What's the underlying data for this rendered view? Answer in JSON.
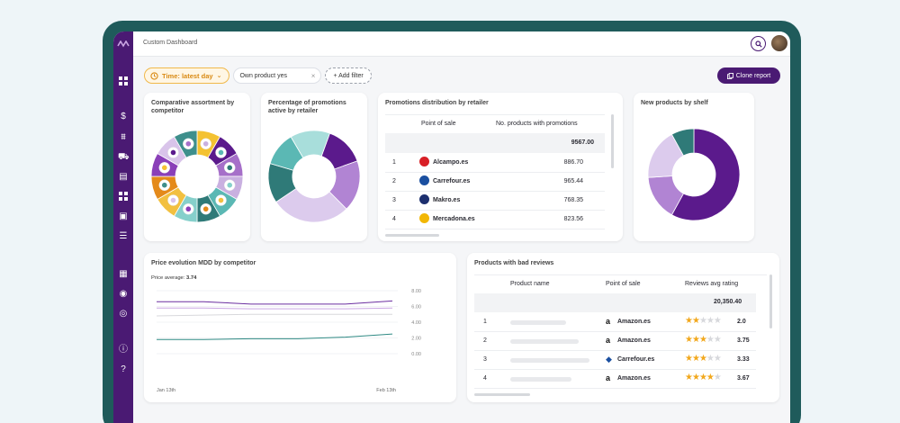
{
  "header": {
    "title": "Custom Dashboard"
  },
  "filters": {
    "time_label": "Time: latest day",
    "own_product": "Own product yes",
    "add_filter": "+ Add filter",
    "clone_label": "Clone report"
  },
  "cards": {
    "assortment": {
      "title_l1": "Comparative assortment by",
      "title_l2": "competitor"
    },
    "promotions_active": {
      "title_l1": "Percentage of promotions",
      "title_l2": "active by retailer"
    },
    "promo_dist": {
      "title": "Promotions distribution by retailer",
      "col_pos": "Point of sale",
      "col_num": "No. products with promotions",
      "total": "9567.00",
      "rows": [
        {
          "idx": "1",
          "name": "Alcampo.es",
          "value": "886.70",
          "logo_color": "#d81f26"
        },
        {
          "idx": "2",
          "name": "Carrefour.es",
          "value": "965.44",
          "logo_color": "#1b4fa0"
        },
        {
          "idx": "3",
          "name": "Makro.es",
          "value": "768.35",
          "logo_color": "#1c2f6e"
        },
        {
          "idx": "4",
          "name": "Mercadona.es",
          "value": "823.56",
          "logo_color": "#f2b705"
        }
      ]
    },
    "new_products": {
      "title": "New products by shelf"
    },
    "price_evolution": {
      "title": "Price evolution MDD by competitor",
      "avg_label": "Price average:",
      "avg_value": "3.74"
    },
    "bad_reviews": {
      "title": "Products with bad reviews",
      "col_name": "Product name",
      "col_pos": "Point of sale",
      "col_rating": "Reviews avg rating",
      "total": "20,350.40",
      "rows": [
        {
          "idx": "1",
          "pos": "Amazon.es",
          "rating": "2.0",
          "stars": 2
        },
        {
          "idx": "2",
          "pos": "Amazon.es",
          "rating": "3.75",
          "stars": 3
        },
        {
          "idx": "3",
          "pos": "Carrefour.es",
          "rating": "3.33",
          "stars": 3
        },
        {
          "idx": "4",
          "pos": "Amazon.es",
          "rating": "3.67",
          "stars": 4
        }
      ]
    }
  },
  "chart_data": [
    {
      "type": "pie",
      "values": [
        1,
        1,
        1,
        1,
        1,
        1,
        1,
        1,
        1,
        1,
        1,
        1
      ],
      "colors": [
        "#f4c232",
        "#5b1a8c",
        "#a66fc9",
        "#c9b0e0",
        "#5bb8b4",
        "#2f7a78",
        "#86d0cb",
        "#f2c040",
        "#e48a1a",
        "#8a3fb8",
        "#d9c4ea",
        "#3e8f8c"
      ]
    },
    {
      "type": "pie",
      "values": [
        14,
        18,
        28,
        14,
        12,
        14
      ],
      "colors": [
        "#5b1a8c",
        "#b184d3",
        "#dccbed",
        "#2f7a78",
        "#5bb8b4",
        "#a8dedb"
      ]
    },
    {
      "type": "pie",
      "values": [
        58,
        16,
        18,
        8
      ],
      "colors": [
        "#5b1a8c",
        "#b184d3",
        "#dccbed",
        "#2f7a78"
      ]
    },
    {
      "type": "line",
      "x_tick_labels": [
        "Jan 13th",
        "Feb 13th"
      ],
      "y_ticks": [
        0,
        2,
        4,
        6,
        8
      ],
      "y_tick_labels": [
        "0.00",
        "2.00",
        "4.00",
        "6.00",
        "8.00"
      ],
      "ylim": [
        0,
        8
      ],
      "series": [
        {
          "values": [
            6.6,
            6.6,
            6.3,
            6.3,
            6.3,
            6.7
          ],
          "color": "#6b2fa0"
        },
        {
          "values": [
            5.8,
            5.8,
            5.7,
            5.7,
            5.7,
            5.8
          ],
          "color": "#c9a6e3"
        },
        {
          "values": [
            4.8,
            4.9,
            5.0,
            5.0,
            5.0,
            5.0
          ],
          "color": "#d8d8dc"
        },
        {
          "values": [
            1.8,
            1.8,
            1.9,
            1.9,
            2.1,
            2.5
          ],
          "color": "#2f8a84"
        }
      ]
    }
  ]
}
